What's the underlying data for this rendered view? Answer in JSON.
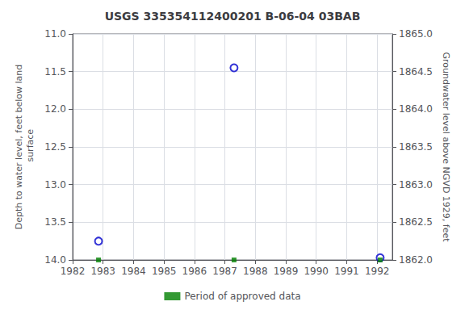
{
  "chart_data": {
    "type": "scatter",
    "title": "USGS 335354112400201 B-06-04 03BAB",
    "ylabel": "Depth to water level, feet below land\n surface",
    "y2label": "Groundwater level above NGVD 1929, feet",
    "x": [
      1982.85,
      1987.3,
      1992.1
    ],
    "series": [
      {
        "color": "#0000cc",
        "marker": "circle_open",
        "values": [
          13.75,
          11.45,
          13.97
        ]
      },
      {
        "name": "Period of approved data",
        "color": "#008000",
        "marker": "square",
        "values": [
          14.0,
          14.0,
          14.0
        ]
      }
    ],
    "xlim": [
      1982,
      1992.5
    ],
    "xticks": [
      1982,
      1983,
      1984,
      1985,
      1986,
      1987,
      1988,
      1989,
      1990,
      1991,
      1992
    ],
    "ylim": [
      14.0,
      11.0
    ],
    "yticks": [
      {
        "value": 11.0,
        "label": "11.0"
      },
      {
        "value": 11.5,
        "label": "11.5"
      },
      {
        "value": 12.0,
        "label": "12.0"
      },
      {
        "value": 12.5,
        "label": "12.5"
      },
      {
        "value": 13.0,
        "label": "13.0"
      },
      {
        "value": 13.5,
        "label": "13.5"
      },
      {
        "value": 14.0,
        "label": "14.0"
      }
    ],
    "y2lim": [
      1862.0,
      1865.0
    ],
    "y2ticks": [
      {
        "value": 1865.0,
        "label": "1865.0"
      },
      {
        "value": 1864.5,
        "label": "1864.5"
      },
      {
        "value": 1864.0,
        "label": "1864.0"
      },
      {
        "value": 1863.5,
        "label": "1863.5"
      },
      {
        "value": 1863.0,
        "label": "1863.0"
      },
      {
        "value": 1862.5,
        "label": "1862.5"
      },
      {
        "value": 1862.0,
        "label": "1862.0"
      }
    ],
    "grid": true,
    "legend": "bottom"
  }
}
